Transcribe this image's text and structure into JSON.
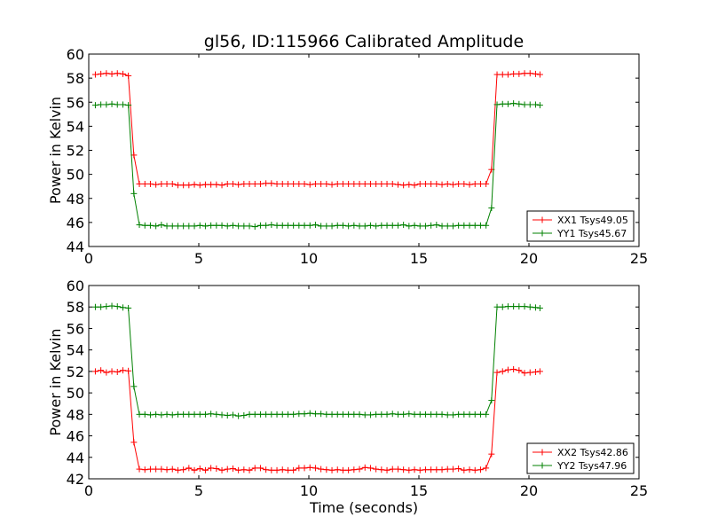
{
  "title": "gl56, ID:115966 Calibrated Amplitude",
  "chart_data": [
    {
      "type": "line",
      "ylabel": "Power in Kelvin",
      "xlabel": "",
      "xlim": [
        0,
        25
      ],
      "ylim": [
        44,
        60
      ],
      "xticks": [
        "0",
        "5",
        "10",
        "15",
        "20",
        "25"
      ],
      "yticks": [
        "44",
        "46",
        "48",
        "50",
        "52",
        "54",
        "56",
        "58",
        "60"
      ],
      "legend_position": "lower-right",
      "series": [
        {
          "name": "XX1 Tsys49.05",
          "color": "#ff0000",
          "x": [
            0.3,
            0.55,
            0.8,
            1.05,
            1.3,
            1.55,
            1.8,
            2.05,
            2.3,
            2.55,
            2.8,
            3.05,
            3.3,
            3.55,
            3.8,
            4.05,
            4.3,
            4.55,
            4.8,
            5.05,
            5.3,
            5.55,
            5.8,
            6.05,
            6.3,
            6.55,
            6.8,
            7.05,
            7.3,
            7.55,
            7.8,
            8.05,
            8.3,
            8.55,
            8.8,
            9.05,
            9.3,
            9.55,
            9.8,
            10.05,
            10.3,
            10.55,
            10.8,
            11.05,
            11.3,
            11.55,
            11.8,
            12.05,
            12.3,
            12.55,
            12.8,
            13.05,
            13.3,
            13.55,
            13.8,
            14.05,
            14.3,
            14.55,
            14.8,
            15.05,
            15.3,
            15.55,
            15.8,
            16.05,
            16.3,
            16.55,
            16.8,
            17.05,
            17.3,
            17.55,
            17.8,
            18.05,
            18.3,
            18.55,
            18.8,
            19.05,
            19.3,
            19.55,
            19.8,
            20.05,
            20.3,
            20.5
          ],
          "y": [
            58.3,
            58.35,
            58.4,
            58.35,
            58.4,
            58.35,
            58.2,
            51.6,
            49.2,
            49.2,
            49.2,
            49.15,
            49.2,
            49.2,
            49.2,
            49.1,
            49.1,
            49.1,
            49.15,
            49.1,
            49.15,
            49.15,
            49.15,
            49.1,
            49.2,
            49.2,
            49.15,
            49.2,
            49.2,
            49.2,
            49.2,
            49.25,
            49.25,
            49.2,
            49.2,
            49.2,
            49.2,
            49.2,
            49.2,
            49.15,
            49.2,
            49.2,
            49.2,
            49.15,
            49.2,
            49.2,
            49.2,
            49.2,
            49.2,
            49.2,
            49.2,
            49.2,
            49.2,
            49.2,
            49.2,
            49.15,
            49.1,
            49.15,
            49.1,
            49.2,
            49.2,
            49.2,
            49.2,
            49.15,
            49.2,
            49.15,
            49.2,
            49.2,
            49.15,
            49.2,
            49.2,
            49.2,
            50.4,
            58.3,
            58.3,
            58.3,
            58.35,
            58.35,
            58.4,
            58.4,
            58.35,
            58.3
          ]
        },
        {
          "name": "YY1 Tsys45.67",
          "color": "#008000",
          "x": [
            0.3,
            0.55,
            0.8,
            1.05,
            1.3,
            1.55,
            1.8,
            2.05,
            2.3,
            2.55,
            2.8,
            3.05,
            3.3,
            3.55,
            3.8,
            4.05,
            4.3,
            4.55,
            4.8,
            5.05,
            5.3,
            5.55,
            5.8,
            6.05,
            6.3,
            6.55,
            6.8,
            7.05,
            7.3,
            7.55,
            7.8,
            8.05,
            8.3,
            8.55,
            8.8,
            9.05,
            9.3,
            9.55,
            9.8,
            10.05,
            10.3,
            10.55,
            10.8,
            11.05,
            11.3,
            11.55,
            11.8,
            12.05,
            12.3,
            12.55,
            12.8,
            13.05,
            13.3,
            13.55,
            13.8,
            14.05,
            14.3,
            14.55,
            14.8,
            15.05,
            15.3,
            15.55,
            15.8,
            16.05,
            16.3,
            16.55,
            16.8,
            17.05,
            17.3,
            17.55,
            17.8,
            18.05,
            18.3,
            18.55,
            18.8,
            19.05,
            19.3,
            19.55,
            19.8,
            20.05,
            20.3,
            20.5
          ],
          "y": [
            55.75,
            55.8,
            55.8,
            55.85,
            55.8,
            55.8,
            55.75,
            48.4,
            45.8,
            45.75,
            45.75,
            45.7,
            45.8,
            45.7,
            45.7,
            45.7,
            45.7,
            45.7,
            45.7,
            45.75,
            45.7,
            45.75,
            45.75,
            45.75,
            45.7,
            45.75,
            45.7,
            45.7,
            45.7,
            45.65,
            45.75,
            45.75,
            45.8,
            45.75,
            45.75,
            45.75,
            45.75,
            45.75,
            45.75,
            45.75,
            45.8,
            45.7,
            45.7,
            45.7,
            45.75,
            45.75,
            45.7,
            45.75,
            45.7,
            45.7,
            45.75,
            45.7,
            45.75,
            45.75,
            45.75,
            45.75,
            45.8,
            45.7,
            45.75,
            45.7,
            45.7,
            45.75,
            45.8,
            45.7,
            45.7,
            45.7,
            45.75,
            45.75,
            45.75,
            45.75,
            45.75,
            45.75,
            47.2,
            55.8,
            55.85,
            55.85,
            55.9,
            55.85,
            55.8,
            55.8,
            55.8,
            55.75
          ]
        }
      ]
    },
    {
      "type": "line",
      "ylabel": "Power in Kelvin",
      "xlabel": "Time (seconds)",
      "xlim": [
        0,
        25
      ],
      "ylim": [
        42,
        60
      ],
      "xticks": [
        "0",
        "5",
        "10",
        "15",
        "20",
        "25"
      ],
      "yticks": [
        "42",
        "44",
        "46",
        "48",
        "50",
        "52",
        "54",
        "56",
        "58",
        "60"
      ],
      "legend_position": "lower-right",
      "series": [
        {
          "name": "XX2 Tsys42.86",
          "color": "#ff0000",
          "x": [
            0.3,
            0.55,
            0.8,
            1.05,
            1.3,
            1.55,
            1.8,
            2.05,
            2.3,
            2.55,
            2.8,
            3.05,
            3.3,
            3.55,
            3.8,
            4.05,
            4.3,
            4.55,
            4.8,
            5.05,
            5.3,
            5.55,
            5.8,
            6.05,
            6.3,
            6.55,
            6.8,
            7.05,
            7.3,
            7.55,
            7.8,
            8.05,
            8.3,
            8.55,
            8.8,
            9.05,
            9.3,
            9.55,
            9.8,
            10.05,
            10.3,
            10.55,
            10.8,
            11.05,
            11.3,
            11.55,
            11.8,
            12.05,
            12.3,
            12.55,
            12.8,
            13.05,
            13.3,
            13.55,
            13.8,
            14.05,
            14.3,
            14.55,
            14.8,
            15.05,
            15.3,
            15.55,
            15.8,
            16.05,
            16.3,
            16.55,
            16.8,
            17.05,
            17.3,
            17.55,
            17.8,
            18.05,
            18.3,
            18.55,
            18.8,
            19.05,
            19.3,
            19.55,
            19.8,
            20.05,
            20.3,
            20.5
          ],
          "y": [
            52.0,
            52.1,
            51.9,
            52.0,
            51.95,
            52.1,
            52.05,
            45.4,
            42.9,
            42.85,
            42.9,
            42.9,
            42.9,
            42.85,
            42.9,
            42.8,
            42.85,
            43.0,
            42.8,
            42.95,
            42.8,
            43.0,
            42.95,
            42.8,
            42.9,
            42.95,
            42.8,
            42.85,
            42.8,
            43.0,
            43.0,
            42.85,
            42.8,
            42.8,
            42.85,
            42.8,
            42.8,
            43.0,
            43.0,
            43.05,
            43.0,
            42.9,
            42.85,
            42.8,
            42.85,
            42.8,
            42.8,
            42.85,
            42.9,
            43.05,
            43.0,
            42.9,
            42.85,
            42.8,
            42.9,
            42.9,
            42.85,
            42.8,
            42.85,
            42.8,
            42.85,
            42.85,
            42.85,
            42.85,
            42.9,
            42.9,
            42.95,
            42.8,
            42.85,
            42.8,
            42.85,
            43.0,
            44.3,
            51.9,
            52.0,
            52.15,
            52.2,
            52.1,
            51.85,
            51.9,
            51.95,
            52.0
          ]
        },
        {
          "name": "YY2 Tsys47.96",
          "color": "#008000",
          "x": [
            0.3,
            0.55,
            0.8,
            1.05,
            1.3,
            1.55,
            1.8,
            2.05,
            2.3,
            2.55,
            2.8,
            3.05,
            3.3,
            3.55,
            3.8,
            4.05,
            4.3,
            4.55,
            4.8,
            5.05,
            5.3,
            5.55,
            5.8,
            6.05,
            6.3,
            6.55,
            6.8,
            7.05,
            7.3,
            7.55,
            7.8,
            8.05,
            8.3,
            8.55,
            8.8,
            9.05,
            9.3,
            9.55,
            9.8,
            10.05,
            10.3,
            10.55,
            10.8,
            11.05,
            11.3,
            11.55,
            11.8,
            12.05,
            12.3,
            12.55,
            12.8,
            13.05,
            13.3,
            13.55,
            13.8,
            14.05,
            14.3,
            14.55,
            14.8,
            15.05,
            15.3,
            15.55,
            15.8,
            16.05,
            16.3,
            16.55,
            16.8,
            17.05,
            17.3,
            17.55,
            17.8,
            18.05,
            18.3,
            18.55,
            18.8,
            19.05,
            19.3,
            19.55,
            19.8,
            20.05,
            20.3,
            20.5
          ],
          "y": [
            58.0,
            58.0,
            58.05,
            58.1,
            58.05,
            57.95,
            57.9,
            50.6,
            48.0,
            48.0,
            47.95,
            48.0,
            47.95,
            48.0,
            47.95,
            48.0,
            48.0,
            48.0,
            48.0,
            48.0,
            48.0,
            48.05,
            48.0,
            47.95,
            47.9,
            47.95,
            47.85,
            47.9,
            48.0,
            48.0,
            48.0,
            48.0,
            48.0,
            48.0,
            48.0,
            48.0,
            48.0,
            48.05,
            48.05,
            48.1,
            48.05,
            48.05,
            48.0,
            48.0,
            48.0,
            48.0,
            48.0,
            48.0,
            48.0,
            47.95,
            47.95,
            48.0,
            48.0,
            48.0,
            48.05,
            48.0,
            48.0,
            48.05,
            48.0,
            48.0,
            48.0,
            48.0,
            48.0,
            48.0,
            47.95,
            47.95,
            48.0,
            48.0,
            48.0,
            48.0,
            48.0,
            48.0,
            49.3,
            58.0,
            58.0,
            58.05,
            58.05,
            58.05,
            58.05,
            58.0,
            57.95,
            57.9
          ]
        }
      ]
    }
  ]
}
